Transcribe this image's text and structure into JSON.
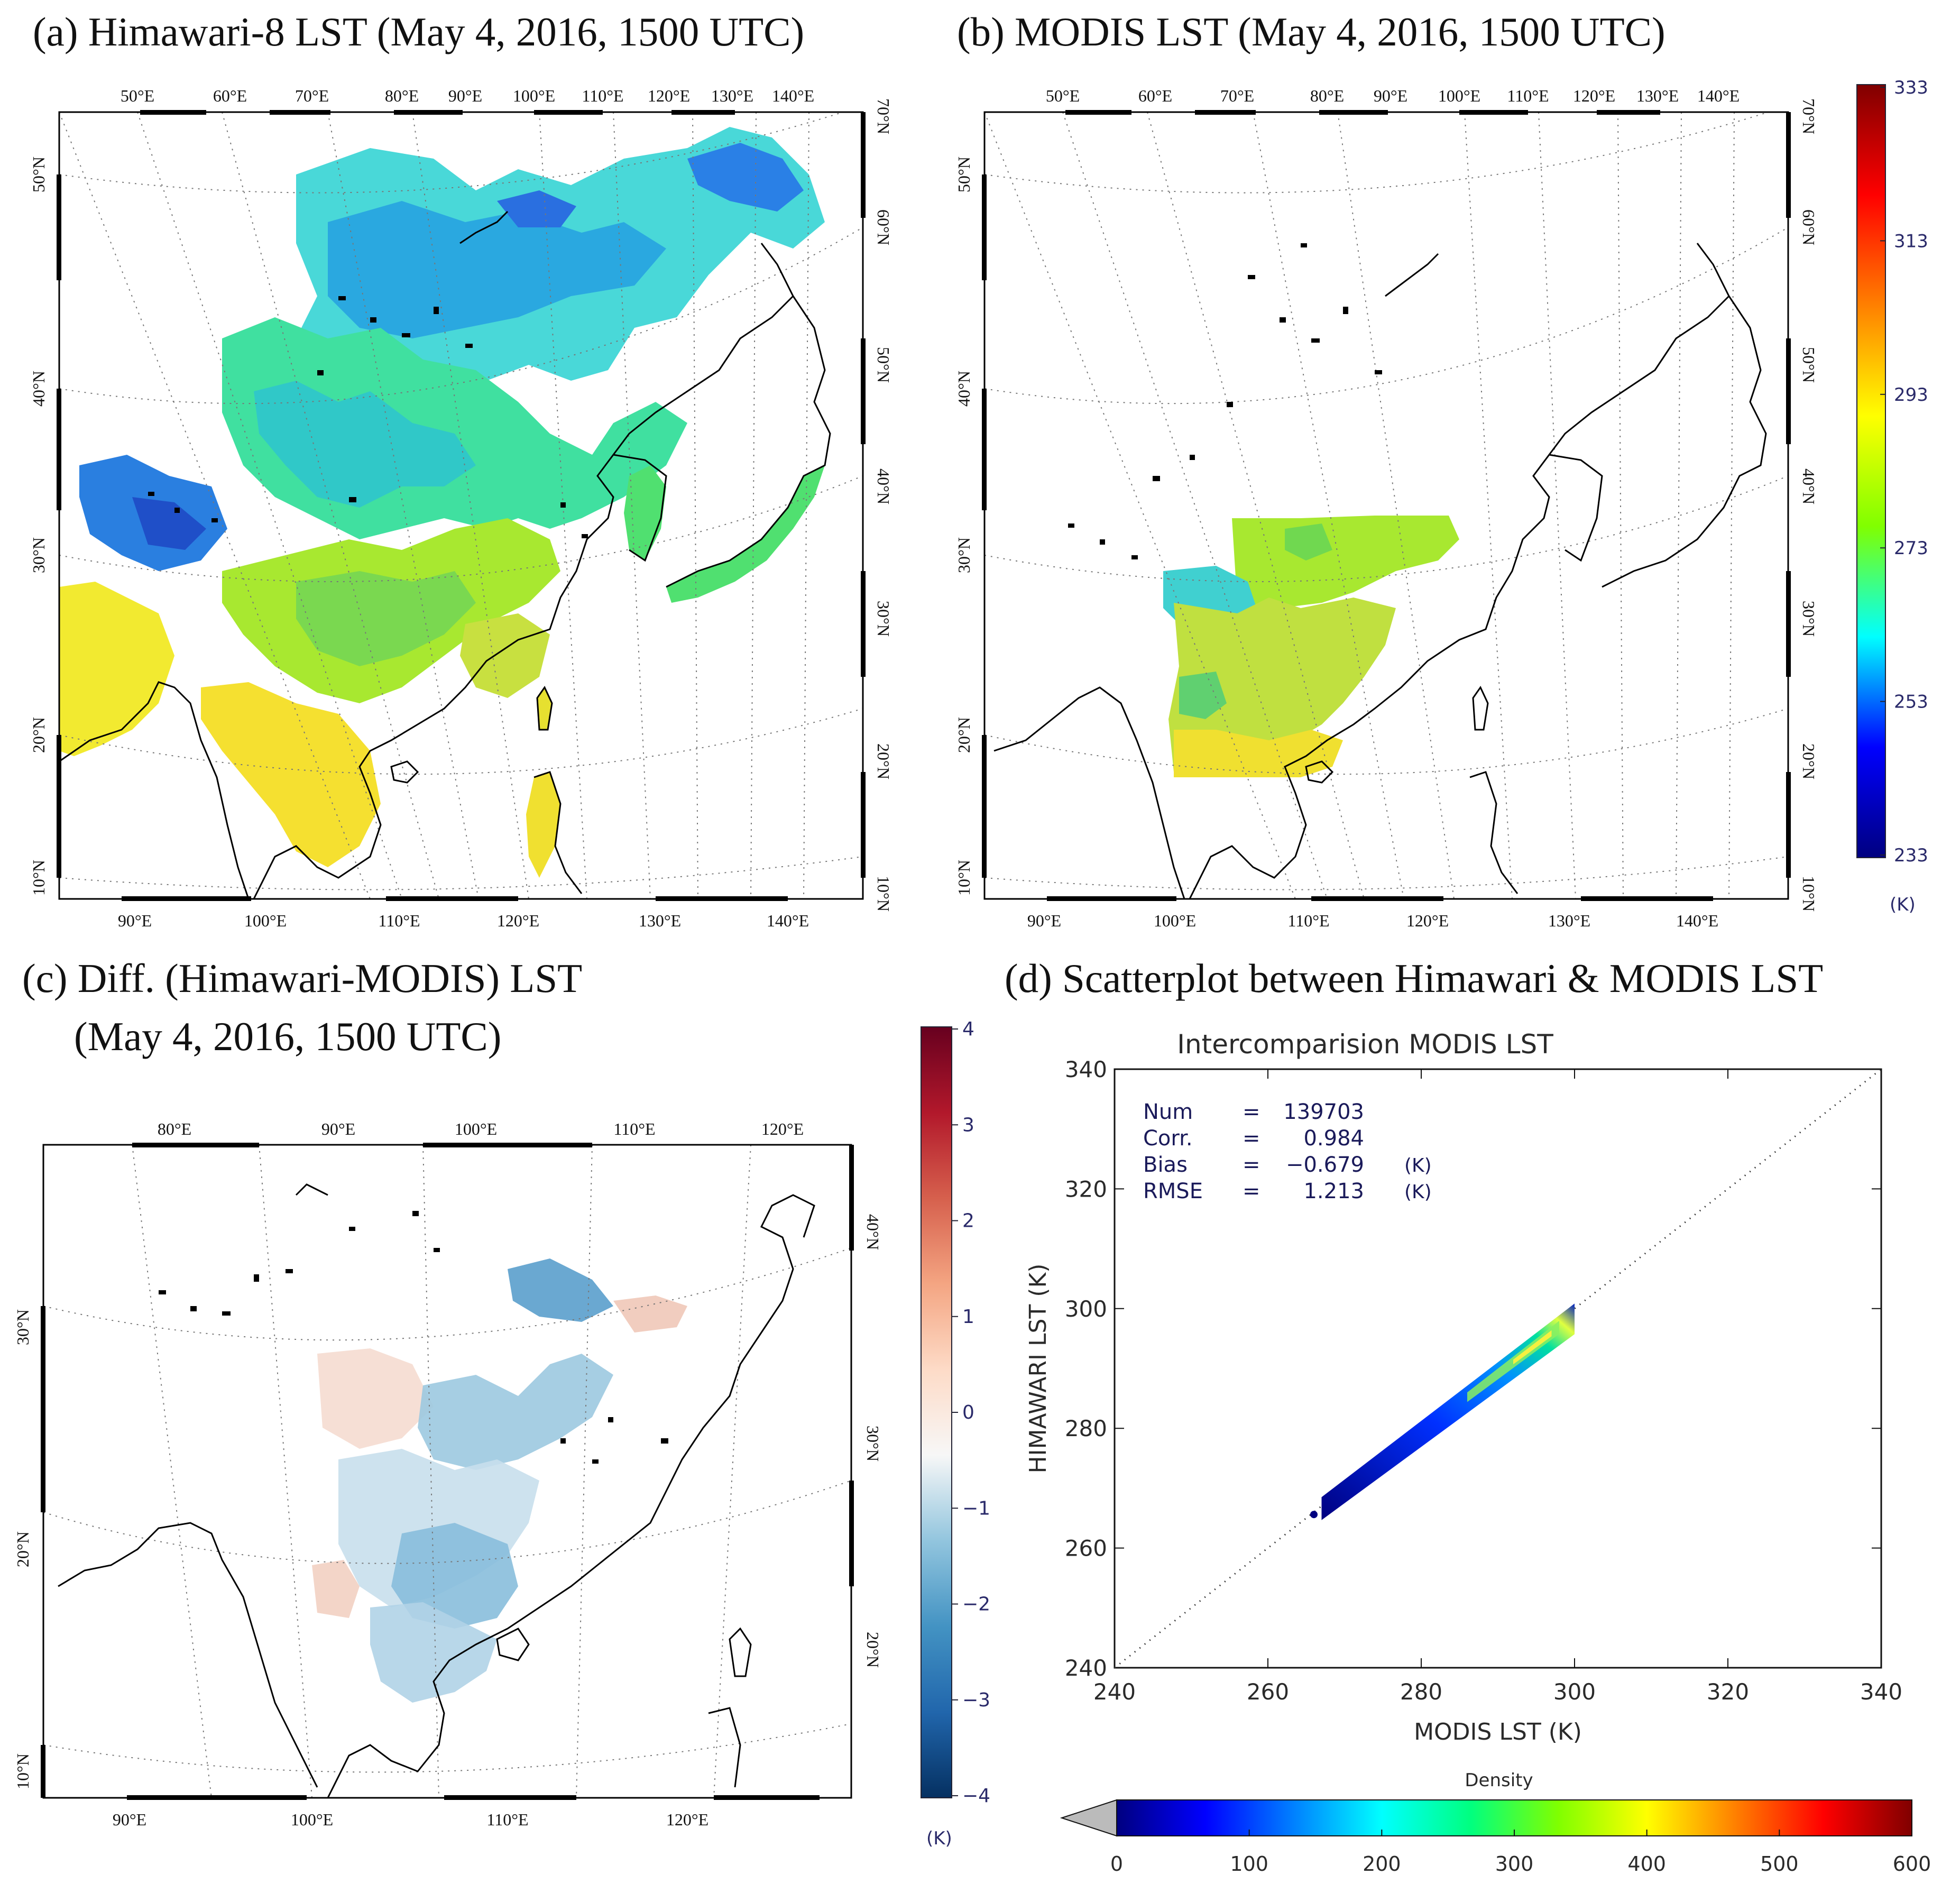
{
  "panels": {
    "a": {
      "title": "(a) Himawari-8 LST (May 4, 2016, 1500 UTC)"
    },
    "b": {
      "title": "(b) MODIS LST (May 4, 2016, 1500 UTC)"
    },
    "c": {
      "title_line1": "(c) Diff. (Himawari-MODIS) LST",
      "title_line2": "(May 4, 2016, 1500 UTC)"
    },
    "d": {
      "title": "(d) Scatterplot between Himawari & MODIS LST"
    }
  },
  "maps": {
    "ab": {
      "top_lon": [
        "50°E",
        "60°E",
        "70°E",
        "80°E",
        "90°E",
        "100°E",
        "110°E",
        "120°E",
        "130°E",
        "140°E"
      ],
      "bottom_lon": [
        "90°E",
        "100°E",
        "110°E",
        "120°E",
        "130°E",
        "140°E"
      ],
      "left_lat": [
        "50°N",
        "40°N",
        "30°N",
        "20°N",
        "10°N"
      ],
      "right_lat": [
        "70°N",
        "60°N",
        "50°N",
        "40°N",
        "30°N",
        "20°N",
        "10°N"
      ]
    },
    "c": {
      "top_lon": [
        "80°E",
        "90°E",
        "100°E",
        "110°E",
        "120°E"
      ],
      "bottom_lon": [
        "90°E",
        "100°E",
        "110°E",
        "120°E"
      ],
      "left_lat": [
        "30°N",
        "20°N",
        "10°N"
      ],
      "right_lat": [
        "40°N",
        "30°N",
        "20°N"
      ]
    }
  },
  "colorbars": {
    "lst": {
      "ticks": [
        "333",
        "313",
        "293",
        "273",
        "253",
        "233"
      ],
      "unit": "(K)",
      "colors": [
        "#000080",
        "#0000ff",
        "#00ffff",
        "#80ff00",
        "#ffff00",
        "#ff8000",
        "#ff0000",
        "#800000"
      ]
    },
    "diff": {
      "ticks": [
        "4",
        "3",
        "2",
        "1",
        "0",
        "−1",
        "−2",
        "−3",
        "−4"
      ],
      "unit": "(K)",
      "colors": [
        "#053061",
        "#2166ac",
        "#4393c3",
        "#92c5de",
        "#f7f7f7",
        "#fddbc7",
        "#f4a582",
        "#d6604d",
        "#b2182b",
        "#67001f"
      ]
    },
    "density": {
      "label": "Density",
      "ticks": [
        "0",
        "100",
        "200",
        "300",
        "400",
        "500",
        "600"
      ],
      "colors": [
        "#000080",
        "#0000ff",
        "#0080ff",
        "#00ffff",
        "#00ff80",
        "#80ff00",
        "#ffff00",
        "#ff8000",
        "#ff0000",
        "#800000"
      ]
    }
  },
  "chart_data": [
    {
      "type": "scatter",
      "title": "Intercomparision MODIS LST",
      "xlabel": "MODIS LST (K)",
      "ylabel": "HIMAWARI LST (K)",
      "xlim": [
        240,
        340
      ],
      "ylim": [
        240,
        340
      ],
      "xticks": [
        "240",
        "260",
        "280",
        "300",
        "320",
        "340"
      ],
      "yticks": [
        "240",
        "260",
        "280",
        "300",
        "320",
        "340"
      ],
      "stats": [
        {
          "label": "Num",
          "eq": "=",
          "value": "139703",
          "unit": ""
        },
        {
          "label": "Corr.",
          "eq": "=",
          "value": "0.984",
          "unit": ""
        },
        {
          "label": "Bias",
          "eq": "=",
          "value": "−0.679",
          "unit": "(K)"
        },
        {
          "label": "RMSE",
          "eq": "=",
          "value": "1.213",
          "unit": "(K)"
        }
      ],
      "one_to_one_line": true,
      "point_cloud": {
        "x_range": [
          267,
          300
        ],
        "fit_slope": 0.98,
        "fit_offset_k": -0.679
      }
    }
  ]
}
